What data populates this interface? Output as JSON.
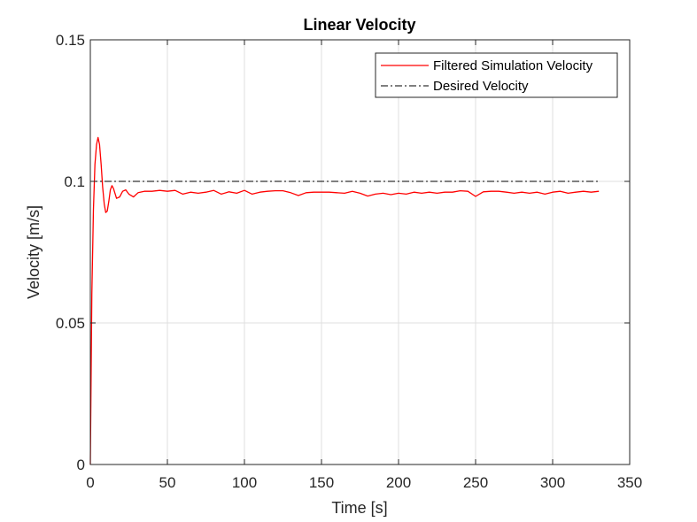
{
  "chart_data": {
    "type": "line",
    "title": "Linear Velocity",
    "xlabel": "Time [s]",
    "ylabel": "Velocity [m/s]",
    "xlim": [
      0,
      350
    ],
    "ylim": [
      0,
      0.15
    ],
    "grid": true,
    "legend_position": "top-right",
    "x_ticks": [
      0,
      50,
      100,
      150,
      200,
      250,
      300,
      350
    ],
    "x_tick_labels": [
      "0",
      "50",
      "100",
      "150",
      "200",
      "250",
      "300",
      "350"
    ],
    "y_ticks": [
      0,
      0.05,
      0.1,
      0.15
    ],
    "y_tick_labels": [
      "0",
      "0.05",
      "0.1",
      "0.15"
    ],
    "series": [
      {
        "name": "Filtered Simulation Velocity",
        "color": "#ff0000",
        "style": "solid",
        "x": [
          0,
          1,
          2,
          3,
          4,
          5,
          6,
          7,
          8,
          9,
          10,
          11,
          12,
          13,
          14,
          15,
          17,
          19,
          21,
          23,
          25,
          28,
          31,
          35,
          40,
          45,
          50,
          55,
          60,
          65,
          70,
          75,
          80,
          85,
          90,
          95,
          100,
          105,
          110,
          115,
          120,
          125,
          130,
          135,
          140,
          145,
          150,
          155,
          160,
          165,
          170,
          175,
          180,
          185,
          190,
          195,
          200,
          205,
          210,
          215,
          220,
          225,
          230,
          235,
          240,
          245,
          250,
          255,
          260,
          265,
          270,
          275,
          280,
          285,
          290,
          295,
          300,
          305,
          310,
          315,
          320,
          325,
          330
        ],
        "values": [
          0,
          0.06,
          0.09,
          0.106,
          0.113,
          0.1155,
          0.113,
          0.106,
          0.098,
          0.092,
          0.089,
          0.0895,
          0.093,
          0.097,
          0.0985,
          0.0975,
          0.094,
          0.0945,
          0.0965,
          0.097,
          0.0955,
          0.0945,
          0.096,
          0.0965,
          0.0965,
          0.0968,
          0.0965,
          0.0968,
          0.0955,
          0.0962,
          0.0958,
          0.0962,
          0.0968,
          0.0955,
          0.0963,
          0.0958,
          0.0968,
          0.0955,
          0.0962,
          0.0965,
          0.0967,
          0.0967,
          0.096,
          0.095,
          0.096,
          0.0962,
          0.0962,
          0.0962,
          0.096,
          0.0958,
          0.0965,
          0.0958,
          0.0948,
          0.0955,
          0.0958,
          0.0953,
          0.0958,
          0.0955,
          0.0962,
          0.0958,
          0.0962,
          0.0958,
          0.0962,
          0.0962,
          0.0967,
          0.0965,
          0.0947,
          0.0963,
          0.0965,
          0.0965,
          0.0962,
          0.0958,
          0.0962,
          0.0958,
          0.0962,
          0.0955,
          0.0962,
          0.0965,
          0.0958,
          0.0962,
          0.0965,
          0.0962,
          0.0965
        ]
      },
      {
        "name": "Desired Velocity",
        "color": "#000000",
        "style": "dashdot",
        "x": [
          0,
          330
        ],
        "values": [
          0.1,
          0.1
        ]
      }
    ]
  }
}
